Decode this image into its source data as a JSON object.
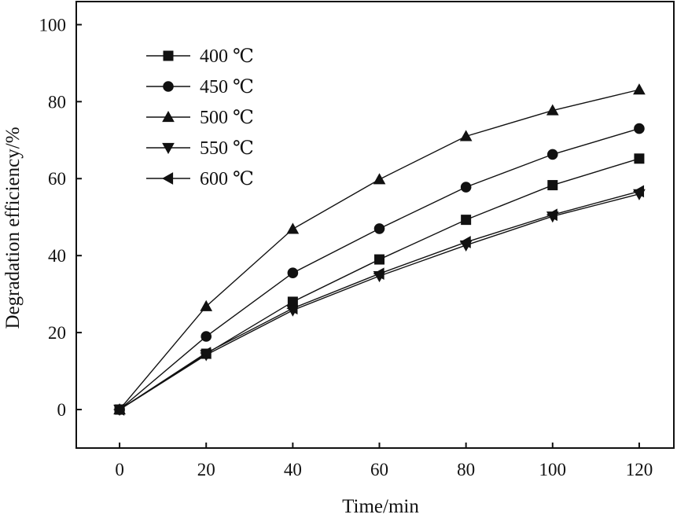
{
  "chart_data": {
    "type": "line",
    "xlabel": "Time/min",
    "ylabel": "Degradation efficiency/%",
    "xlim": [
      -10,
      128
    ],
    "ylim": [
      -10,
      106
    ],
    "x_ticks": [
      0,
      20,
      40,
      60,
      80,
      100,
      120
    ],
    "y_ticks": [
      0,
      20,
      40,
      60,
      80,
      100
    ],
    "grid": false,
    "legend_position": "top-left",
    "x": [
      0,
      20,
      40,
      60,
      80,
      100,
      120
    ],
    "series": [
      {
        "name": "400 ℃",
        "marker": "square",
        "values": [
          0,
          14.5,
          28,
          39,
          49.3,
          58.3,
          65.2
        ]
      },
      {
        "name": "450 ℃",
        "marker": "circle",
        "values": [
          0,
          19,
          35.5,
          47,
          57.8,
          66.3,
          73
        ]
      },
      {
        "name": "500 ℃",
        "marker": "triangle-up",
        "values": [
          0,
          26.8,
          46.9,
          59.8,
          71,
          77.7,
          83.1
        ]
      },
      {
        "name": "550 ℃",
        "marker": "triangle-down",
        "values": [
          0,
          14.2,
          25.8,
          34.7,
          42.7,
          50.2,
          56
        ]
      },
      {
        "name": "600 ℃",
        "marker": "triangle-left",
        "values": [
          0,
          14.7,
          26.3,
          35.3,
          43.5,
          50.6,
          56.7
        ]
      }
    ]
  }
}
